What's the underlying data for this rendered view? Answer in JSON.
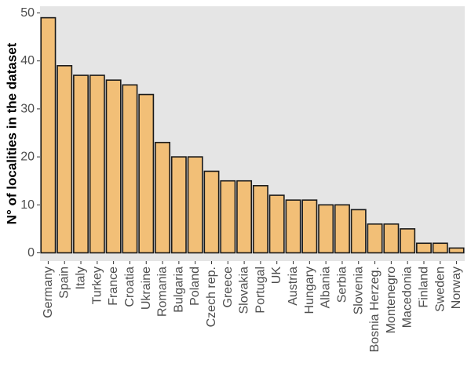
{
  "chart_data": {
    "type": "bar",
    "title": "",
    "xlabel": "",
    "ylabel": "N° of localities in the dataset",
    "ylim": [
      0,
      50
    ],
    "yticks": [
      0,
      10,
      20,
      30,
      40,
      50
    ],
    "grid": false,
    "legend": "none",
    "bar_color": "#F2BF77",
    "bar_edge_color": "#1a1a1a",
    "panel_color": "#E5E5E5",
    "categories": [
      "Germany",
      "Spain",
      "Italy",
      "Turkey",
      "France",
      "Croatia",
      "Ukraine",
      "Romania",
      "Bulgaria",
      "Poland",
      "Czech rep.",
      "Greece",
      "Slovakia",
      "Portugal",
      "UK",
      "Austria",
      "Hungary",
      "Albania",
      "Serbia",
      "Slovenia",
      "Bosnia Herzeg.",
      "Montenegro",
      "Macedonia",
      "Finland",
      "Sweden",
      "Norway"
    ],
    "values": [
      49,
      39,
      37,
      37,
      36,
      35,
      33,
      23,
      20,
      20,
      17,
      15,
      15,
      14,
      12,
      11,
      11,
      10,
      10,
      9,
      6,
      6,
      5,
      2,
      2,
      1
    ]
  }
}
